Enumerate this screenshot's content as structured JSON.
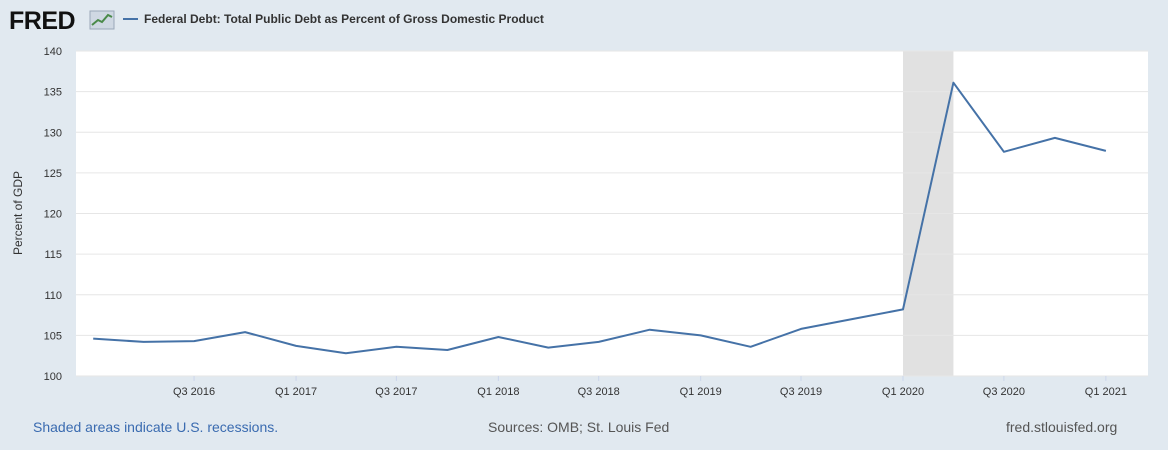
{
  "header": {
    "logo_text": "FRED",
    "legend_label": "Federal Debt: Total Public Debt as Percent of Gross Domestic Product"
  },
  "footer": {
    "recession_note": "Shaded areas indicate U.S. recessions.",
    "sources": "Sources: OMB; St. Louis Fed",
    "site": "fred.stlouisfed.org"
  },
  "colors": {
    "line": "#4572a7",
    "plot_bg": "#ffffff",
    "page_bg": "#e1e9f0",
    "grid": "#e6e6e6",
    "recession": "#e1e1e1"
  },
  "chart_data": {
    "type": "line",
    "ylabel": "Percent of GDP",
    "xlabel": "",
    "ylim": [
      100,
      140
    ],
    "yticks": [
      100,
      105,
      110,
      115,
      120,
      125,
      130,
      135,
      140
    ],
    "x_range": [
      "2015-12-01",
      "2021-03-18"
    ],
    "xticks": [
      {
        "label": "Q3 2016",
        "date": "2016-07-01"
      },
      {
        "label": "Q1 2017",
        "date": "2017-01-01"
      },
      {
        "label": "Q3 2017",
        "date": "2017-07-01"
      },
      {
        "label": "Q1 2018",
        "date": "2018-01-01"
      },
      {
        "label": "Q3 2018",
        "date": "2018-07-01"
      },
      {
        "label": "Q1 2019",
        "date": "2019-01-01"
      },
      {
        "label": "Q3 2019",
        "date": "2019-07-01"
      },
      {
        "label": "Q1 2020",
        "date": "2020-01-01"
      },
      {
        "label": "Q3 2020",
        "date": "2020-07-01"
      },
      {
        "label": "Q1 2021",
        "date": "2021-01-01"
      }
    ],
    "recessions": [
      {
        "start": "2020-01-01",
        "end": "2020-04-01"
      }
    ],
    "grid": true,
    "series": [
      {
        "x": [
          "2016-01-01",
          "2016-04-01",
          "2016-07-01",
          "2016-10-01",
          "2017-01-01",
          "2017-04-01",
          "2017-07-01",
          "2017-10-01",
          "2018-01-01",
          "2018-04-01",
          "2018-07-01",
          "2018-10-01",
          "2019-01-01",
          "2019-04-01",
          "2019-07-01",
          "2019-10-01",
          "2020-01-01",
          "2020-04-01",
          "2020-07-01",
          "2020-10-01",
          "2021-01-01"
        ],
        "values": [
          104.6,
          104.2,
          104.3,
          105.4,
          103.7,
          102.8,
          103.6,
          103.2,
          104.8,
          103.5,
          104.2,
          105.7,
          105.0,
          103.6,
          105.8,
          107.0,
          108.2,
          136.1,
          127.6,
          129.3,
          127.7
        ]
      }
    ]
  }
}
